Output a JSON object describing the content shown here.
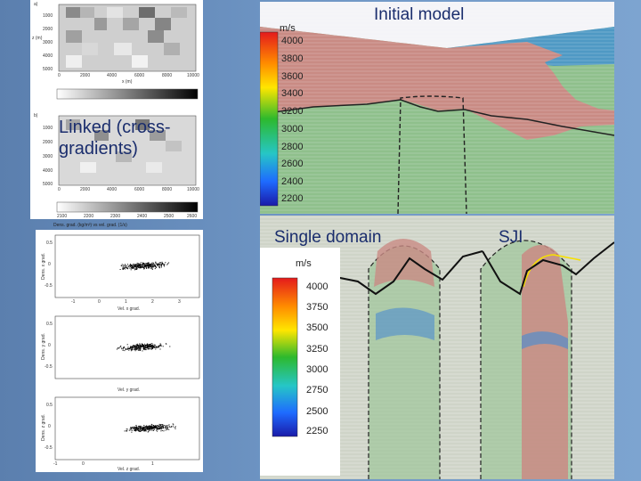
{
  "left_top": {
    "panel_a_letter": "a)",
    "panel_b_letter": "b)",
    "y_ticks": [
      "1000",
      "2000",
      "3000",
      "4000",
      "5000"
    ],
    "x_ticks": [
      "0",
      "2000",
      "4000",
      "6000",
      "8000",
      "10000"
    ],
    "z_label": "z (m)",
    "x_label": "x (m)",
    "cb_ticks_a": [
      "",
      "",
      "",
      "",
      ""
    ],
    "linked_label": "Linked (cross-gradients)",
    "cb_ticks_b": [
      "2100",
      "2200",
      "2300",
      "2400",
      "2500",
      "2600"
    ],
    "cb_caption": "Dens. grad. (kg/m³) vs vel. grad. (1/s)"
  },
  "scatter": {
    "ylabel_1": "Dens. x grad.",
    "ylabel_2": "Dens. y grad.",
    "ylabel_3": "Dens. z grad.",
    "xlabel_1": "Vel. x grad.",
    "xlabel_2": "Vel. y grad.",
    "xlabel_3": "Vel. z grad.",
    "y_ticks": [
      "0.5",
      "0",
      "-0.5"
    ],
    "x_ticks": [
      "-1",
      "0",
      "1",
      "2",
      "3",
      "4"
    ]
  },
  "initial_model": {
    "title": "Initial model",
    "unit": "m/s",
    "cb_ticks": [
      "4000",
      "3800",
      "3600",
      "3400",
      "3200",
      "3000",
      "2800",
      "2600",
      "2400",
      "2200"
    ]
  },
  "single_domain": {
    "title": "Single domain",
    "unit": "m/s",
    "cb_ticks": [
      "4000",
      "3750",
      "3500",
      "3250",
      "3000",
      "2750",
      "2500",
      "2250"
    ]
  },
  "sji": {
    "title": "SJI"
  },
  "colors": {
    "salt": "#c98b84",
    "sediment": "#8fc08c",
    "water": "#4b8ccf"
  }
}
